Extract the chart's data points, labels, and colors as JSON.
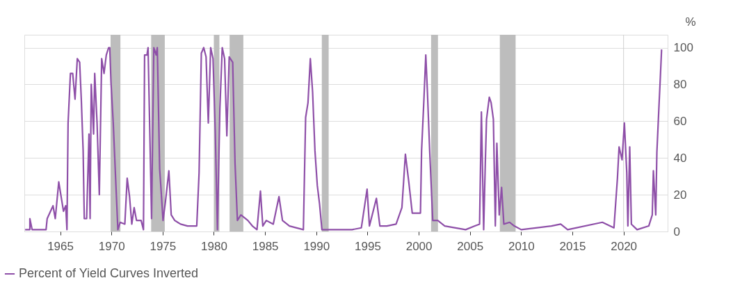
{
  "chart_data": {
    "type": "line",
    "ylabel": "%",
    "x": [
      1961.58,
      1962.04,
      1962.04,
      1962.26,
      1963.62,
      1963.73,
      1964.3,
      1964.52,
      1964.86,
      1965.09,
      1965.32,
      1965.54,
      1965.66,
      1965.77,
      1966.0,
      1966.22,
      1966.45,
      1966.67,
      1966.9,
      1967.06,
      1967.24,
      1967.35,
      1967.58,
      1967.81,
      1967.92,
      1968.03,
      1968.26,
      1968.37,
      1968.6,
      1968.82,
      1969.05,
      1969.28,
      1969.5,
      1969.73,
      1969.84,
      1969.96,
      1970.18,
      1970.41,
      1970.63,
      1970.86,
      1971.31,
      1971.54,
      1971.77,
      1971.99,
      1972.22,
      1972.45,
      1972.9,
      1973.13,
      1973.24,
      1973.47,
      1973.58,
      1973.92,
      1974.14,
      1974.37,
      1974.48,
      1974.71,
      1974.82,
      1975.04,
      1975.27,
      1975.61,
      1975.84,
      1976.18,
      1976.75,
      1977.43,
      1978.33,
      1978.56,
      1978.78,
      1979.01,
      1979.24,
      1979.46,
      1979.69,
      1979.92,
      1980.14,
      1980.35,
      1980.59,
      1980.82,
      1981.05,
      1981.27,
      1981.5,
      1981.84,
      1982.07,
      1982.3,
      1982.64,
      1983.32,
      1983.76,
      1984.21,
      1984.55,
      1984.78,
      1985.12,
      1985.8,
      1986.36,
      1986.7,
      1987.38,
      1988.74,
      1988.96,
      1989.19,
      1989.42,
      1989.64,
      1989.87,
      1990.1,
      1990.32,
      1990.55,
      1991.23,
      1993.49,
      1994.4,
      1994.96,
      1995.19,
      1995.87,
      1996.21,
      1996.89,
      1997.79,
      1998.36,
      1998.7,
      1999.03,
      1999.37,
      2000.17,
      2000.28,
      2000.51,
      2000.69,
      2000.85,
      2001.07,
      2001.37,
      2001.86,
      2002.54,
      2004.58,
      2005.48,
      2005.94,
      2006.12,
      2006.34,
      2006.5,
      2006.62,
      2006.89,
      2007.07,
      2007.29,
      2007.48,
      2007.63,
      2007.86,
      2008.09,
      2008.31,
      2008.88,
      2009.33,
      2010.01,
      2012.95,
      2013.86,
      2014.54,
      2017.93,
      2019.06,
      2019.4,
      2019.56,
      2019.85,
      2020.08,
      2020.31,
      2020.42,
      2020.6,
      2020.76,
      2021.32,
      2022.46,
      2022.8,
      2022.91,
      2023.14,
      2023.25,
      2023.47,
      2023.59,
      2023.71
    ],
    "series": [
      {
        "name": "Percent of Yield Curves Inverted",
        "color": "#8e4fa8",
        "values": [
          1,
          1,
          7,
          1,
          1,
          7,
          14,
          7,
          27,
          19,
          11,
          14,
          1,
          59,
          86,
          86,
          72,
          94,
          92,
          72,
          44,
          7,
          7,
          53,
          7,
          80,
          53,
          86,
          59,
          20,
          94,
          86,
          96,
          100,
          100,
          81,
          59,
          29,
          1,
          5,
          4,
          29,
          19,
          4,
          13,
          6,
          6,
          1,
          96,
          96,
          100,
          7,
          100,
          96,
          100,
          34,
          25,
          6,
          16,
          33,
          9,
          6,
          4,
          3,
          3,
          32,
          97,
          100,
          95,
          59,
          100,
          94,
          54,
          1,
          67,
          100,
          94,
          52,
          95,
          92,
          37,
          6,
          9,
          6,
          3,
          1,
          22,
          3,
          6,
          4,
          19,
          6,
          3,
          1,
          62,
          70,
          94,
          76,
          44,
          25,
          15,
          1,
          1,
          1,
          2,
          23,
          3,
          18,
          3,
          3,
          4,
          13,
          42,
          27,
          10,
          10,
          44,
          72,
          96,
          76,
          44,
          6,
          6,
          3,
          1,
          3,
          4,
          65,
          1,
          37,
          61,
          73,
          70,
          61,
          3,
          48,
          9,
          24,
          4,
          5,
          3,
          1,
          3,
          4,
          1,
          5,
          2,
          29,
          46,
          39,
          59,
          32,
          3,
          46,
          4,
          1,
          3,
          9,
          33,
          9,
          43,
          70,
          84,
          99
        ]
      }
    ],
    "xlim": [
      1961.5,
      2024.3
    ],
    "xticks": [
      1965,
      1970,
      1975,
      1980,
      1985,
      1990,
      1995,
      2000,
      2005,
      2010,
      2015,
      2020
    ],
    "ylim": [
      0,
      107
    ],
    "yticks": [
      0,
      20,
      40,
      60,
      80,
      100
    ],
    "bands": [
      {
        "axis": "x",
        "from": 1969.92,
        "to": 1970.88,
        "color": "#bdbdbd"
      },
      {
        "axis": "x",
        "from": 1973.88,
        "to": 1975.21,
        "color": "#bdbdbd"
      },
      {
        "axis": "x",
        "from": 1980.0,
        "to": 1980.54,
        "color": "#bdbdbd"
      },
      {
        "axis": "x",
        "from": 1981.54,
        "to": 1982.88,
        "color": "#bdbdbd"
      },
      {
        "axis": "x",
        "from": 1990.54,
        "to": 1991.21,
        "color": "#bdbdbd"
      },
      {
        "axis": "x",
        "from": 2001.21,
        "to": 2001.88,
        "color": "#bdbdbd"
      },
      {
        "axis": "x",
        "from": 2007.92,
        "to": 2009.46,
        "color": "#bdbdbd"
      }
    ],
    "ref_lines": [
      {
        "axis": "x",
        "value": 2020,
        "color": "#d0d0d0"
      }
    ],
    "grid": "y",
    "legend": "bottom left",
    "marker": "none",
    "line_style": "solid"
  }
}
